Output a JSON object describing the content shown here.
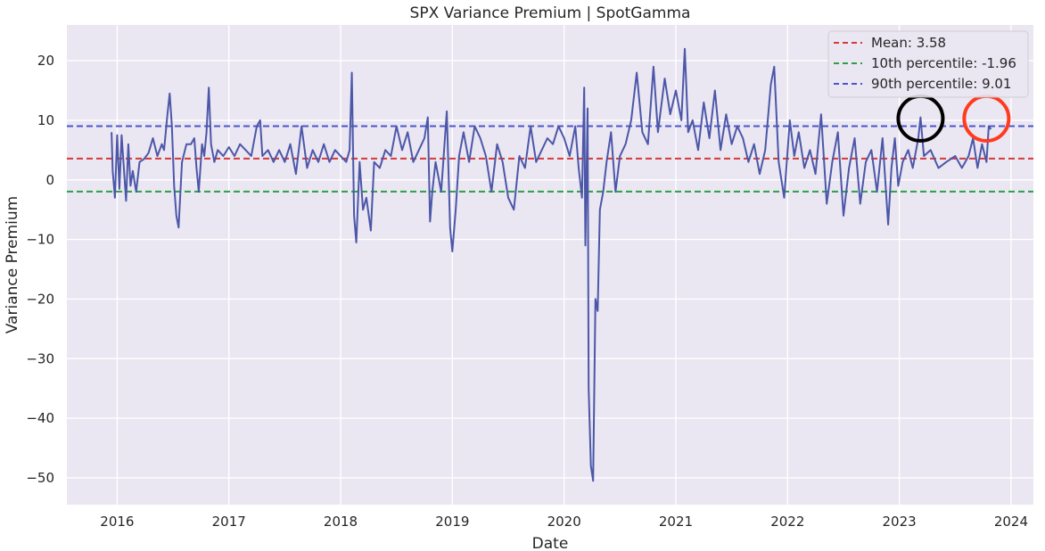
{
  "chart_data": {
    "type": "line",
    "title": "SPX Variance Premium | SpotGamma",
    "xlabel": "Date",
    "ylabel": "Variance Premium",
    "xlim": [
      2015.55,
      2024.2
    ],
    "ylim": [
      -54.5,
      26
    ],
    "x_ticks": [
      2016,
      2017,
      2018,
      2019,
      2020,
      2021,
      2022,
      2023,
      2024
    ],
    "x_tick_labels": [
      "2016",
      "2017",
      "2018",
      "2019",
      "2020",
      "2021",
      "2022",
      "2023",
      "2024"
    ],
    "y_ticks": [
      -50,
      -40,
      -30,
      -20,
      -10,
      0,
      10,
      20
    ],
    "y_tick_labels": [
      "−50",
      "−40",
      "−30",
      "−20",
      "−10",
      "0",
      "10",
      "20"
    ],
    "grid": true,
    "legend_position": "top-right",
    "colors": {
      "background": "#eae6f2",
      "grid": "#ffffff",
      "series": "#4c57a8",
      "mean": "#d62728",
      "p10": "#2ca02c",
      "p90": "#4a57c8",
      "annotation_black": "#000000",
      "annotation_red": "#ff3b1f"
    },
    "reference_lines": [
      {
        "name": "Mean: 3.58",
        "value": 3.58,
        "color": "#d33b3b",
        "style": "dashed"
      },
      {
        "name": "10th percentile: -1.96",
        "value": -1.96,
        "color": "#2ca045",
        "style": "dashed"
      },
      {
        "name": "90th percentile: 9.01",
        "value": 9.01,
        "color": "#4a57c8",
        "style": "dashed"
      }
    ],
    "annotations": [
      {
        "type": "circle",
        "x": 2023.19,
        "y": 10.3,
        "color": "#000000"
      },
      {
        "type": "circle",
        "x": 2023.78,
        "y": 10.3,
        "color": "#ff3b1f"
      }
    ],
    "series": [
      {
        "name": "SPX Variance Premium",
        "points": [
          [
            2015.95,
            8
          ],
          [
            2015.96,
            1.5
          ],
          [
            2015.98,
            -3
          ],
          [
            2016.0,
            7.5
          ],
          [
            2016.02,
            -1.5
          ],
          [
            2016.04,
            7.5
          ],
          [
            2016.06,
            2
          ],
          [
            2016.08,
            -3.5
          ],
          [
            2016.1,
            6
          ],
          [
            2016.12,
            -1
          ],
          [
            2016.14,
            1.5
          ],
          [
            2016.17,
            -2
          ],
          [
            2016.2,
            3
          ],
          [
            2016.24,
            3.5
          ],
          [
            2016.28,
            4.5
          ],
          [
            2016.32,
            7
          ],
          [
            2016.36,
            4
          ],
          [
            2016.4,
            6
          ],
          [
            2016.42,
            5
          ],
          [
            2016.45,
            11
          ],
          [
            2016.47,
            14.5
          ],
          [
            2016.49,
            9
          ],
          [
            2016.51,
            -1
          ],
          [
            2016.53,
            -6
          ],
          [
            2016.55,
            -8
          ],
          [
            2016.58,
            3
          ],
          [
            2016.62,
            6
          ],
          [
            2016.66,
            6
          ],
          [
            2016.69,
            7
          ],
          [
            2016.71,
            2
          ],
          [
            2016.73,
            -2
          ],
          [
            2016.76,
            6
          ],
          [
            2016.78,
            4
          ],
          [
            2016.8,
            8
          ],
          [
            2016.82,
            15.5
          ],
          [
            2016.84,
            6
          ],
          [
            2016.87,
            3
          ],
          [
            2016.9,
            5
          ],
          [
            2016.95,
            4
          ],
          [
            2017.0,
            5.5
          ],
          [
            2017.05,
            4
          ],
          [
            2017.1,
            6
          ],
          [
            2017.15,
            5
          ],
          [
            2017.2,
            4
          ],
          [
            2017.25,
            9
          ],
          [
            2017.28,
            10
          ],
          [
            2017.3,
            4
          ],
          [
            2017.35,
            5
          ],
          [
            2017.4,
            3
          ],
          [
            2017.45,
            5
          ],
          [
            2017.5,
            3
          ],
          [
            2017.55,
            6
          ],
          [
            2017.6,
            1
          ],
          [
            2017.65,
            9
          ],
          [
            2017.7,
            2
          ],
          [
            2017.75,
            5
          ],
          [
            2017.8,
            3
          ],
          [
            2017.85,
            6
          ],
          [
            2017.9,
            3
          ],
          [
            2017.95,
            5
          ],
          [
            2018.0,
            4
          ],
          [
            2018.05,
            3
          ],
          [
            2018.08,
            5
          ],
          [
            2018.1,
            18
          ],
          [
            2018.12,
            -6
          ],
          [
            2018.14,
            -10.5
          ],
          [
            2018.17,
            3
          ],
          [
            2018.2,
            -5
          ],
          [
            2018.23,
            -3
          ],
          [
            2018.27,
            -8.5
          ],
          [
            2018.3,
            3
          ],
          [
            2018.35,
            2
          ],
          [
            2018.4,
            5
          ],
          [
            2018.45,
            4
          ],
          [
            2018.5,
            9
          ],
          [
            2018.55,
            5
          ],
          [
            2018.6,
            8
          ],
          [
            2018.65,
            3
          ],
          [
            2018.7,
            5
          ],
          [
            2018.75,
            7
          ],
          [
            2018.78,
            10.5
          ],
          [
            2018.8,
            -7
          ],
          [
            2018.82,
            -2
          ],
          [
            2018.85,
            3
          ],
          [
            2018.9,
            -2
          ],
          [
            2018.95,
            11.5
          ],
          [
            2018.98,
            -8
          ],
          [
            2019.0,
            -12
          ],
          [
            2019.03,
            -5
          ],
          [
            2019.06,
            4
          ],
          [
            2019.1,
            8
          ],
          [
            2019.15,
            3
          ],
          [
            2019.2,
            9
          ],
          [
            2019.25,
            7
          ],
          [
            2019.3,
            4
          ],
          [
            2019.35,
            -2
          ],
          [
            2019.4,
            6
          ],
          [
            2019.45,
            3
          ],
          [
            2019.5,
            -3
          ],
          [
            2019.55,
            -5
          ],
          [
            2019.6,
            4
          ],
          [
            2019.65,
            2
          ],
          [
            2019.7,
            9
          ],
          [
            2019.75,
            3
          ],
          [
            2019.8,
            5
          ],
          [
            2019.85,
            7
          ],
          [
            2019.9,
            6
          ],
          [
            2019.95,
            9
          ],
          [
            2020.0,
            7
          ],
          [
            2020.05,
            4
          ],
          [
            2020.1,
            9
          ],
          [
            2020.13,
            2
          ],
          [
            2020.16,
            -3
          ],
          [
            2020.18,
            15.5
          ],
          [
            2020.19,
            -11
          ],
          [
            2020.21,
            12
          ],
          [
            2020.22,
            -35
          ],
          [
            2020.24,
            -48
          ],
          [
            2020.26,
            -50.5
          ],
          [
            2020.28,
            -20
          ],
          [
            2020.3,
            -22
          ],
          [
            2020.32,
            -5
          ],
          [
            2020.35,
            -2
          ],
          [
            2020.38,
            3
          ],
          [
            2020.42,
            8
          ],
          [
            2020.46,
            -2
          ],
          [
            2020.5,
            4
          ],
          [
            2020.55,
            6
          ],
          [
            2020.6,
            10
          ],
          [
            2020.65,
            18
          ],
          [
            2020.7,
            8
          ],
          [
            2020.75,
            6
          ],
          [
            2020.8,
            19
          ],
          [
            2020.84,
            8
          ],
          [
            2020.9,
            17
          ],
          [
            2020.95,
            11
          ],
          [
            2021.0,
            15
          ],
          [
            2021.05,
            10
          ],
          [
            2021.08,
            22
          ],
          [
            2021.11,
            8
          ],
          [
            2021.15,
            10
          ],
          [
            2021.2,
            5
          ],
          [
            2021.25,
            13
          ],
          [
            2021.3,
            7
          ],
          [
            2021.35,
            15
          ],
          [
            2021.4,
            5
          ],
          [
            2021.45,
            11
          ],
          [
            2021.5,
            6
          ],
          [
            2021.55,
            9
          ],
          [
            2021.6,
            7
          ],
          [
            2021.65,
            3
          ],
          [
            2021.7,
            6
          ],
          [
            2021.75,
            1
          ],
          [
            2021.8,
            5
          ],
          [
            2021.85,
            16
          ],
          [
            2021.88,
            19
          ],
          [
            2021.92,
            3
          ],
          [
            2021.97,
            -3
          ],
          [
            2022.02,
            10
          ],
          [
            2022.06,
            4
          ],
          [
            2022.1,
            8
          ],
          [
            2022.15,
            2
          ],
          [
            2022.2,
            5
          ],
          [
            2022.25,
            1
          ],
          [
            2022.3,
            11
          ],
          [
            2022.35,
            -4
          ],
          [
            2022.4,
            3
          ],
          [
            2022.45,
            8
          ],
          [
            2022.5,
            -6
          ],
          [
            2022.55,
            2
          ],
          [
            2022.6,
            7
          ],
          [
            2022.65,
            -4
          ],
          [
            2022.7,
            3
          ],
          [
            2022.75,
            5
          ],
          [
            2022.8,
            -2
          ],
          [
            2022.85,
            7
          ],
          [
            2022.9,
            -7.5
          ],
          [
            2022.93,
            2
          ],
          [
            2022.96,
            7
          ],
          [
            2022.99,
            -1
          ],
          [
            2023.03,
            3
          ],
          [
            2023.08,
            5
          ],
          [
            2023.12,
            2
          ],
          [
            2023.17,
            7
          ],
          [
            2023.19,
            10.5
          ],
          [
            2023.22,
            4
          ],
          [
            2023.28,
            5
          ],
          [
            2023.35,
            2
          ],
          [
            2023.42,
            3
          ],
          [
            2023.5,
            4
          ],
          [
            2023.56,
            2
          ],
          [
            2023.62,
            4
          ],
          [
            2023.66,
            7
          ],
          [
            2023.7,
            2
          ],
          [
            2023.74,
            6
          ],
          [
            2023.78,
            3
          ],
          [
            2023.8,
            9
          ],
          [
            2023.82,
            8.5
          ]
        ]
      }
    ]
  }
}
